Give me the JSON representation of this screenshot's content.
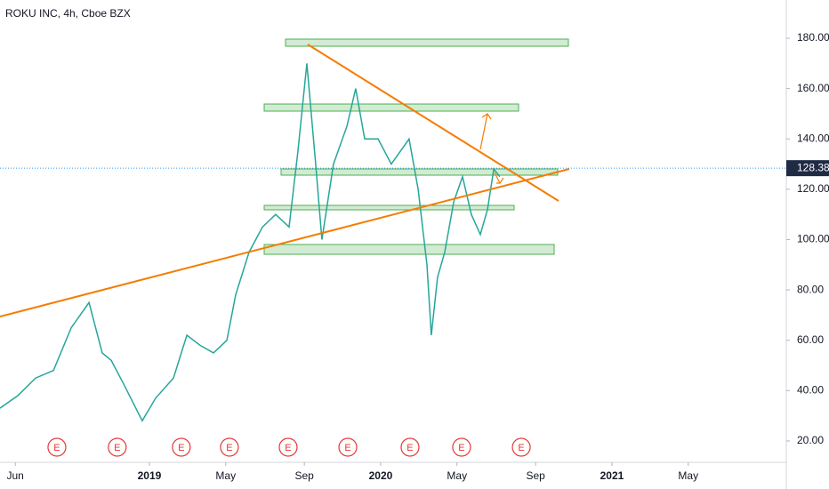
{
  "chart_data": {
    "type": "line",
    "title": "ROKU INC, 4h, Cboe BZX",
    "color": "#26a69a",
    "x": [
      2018.354,
      2018.431,
      2018.508,
      2018.585,
      2018.662,
      2018.739,
      2018.796,
      2018.835,
      2018.892,
      2018.969,
      2019.027,
      2019.104,
      2019.162,
      2019.219,
      2019.277,
      2019.335,
      2019.373,
      2019.431,
      2019.489,
      2019.546,
      2019.604,
      2019.642,
      2019.681,
      2019.719,
      2019.746,
      2019.796,
      2019.854,
      2019.892,
      2019.931,
      2019.989,
      2020.046,
      2020.123,
      2020.162,
      2020.2,
      2020.219,
      2020.246,
      2020.277,
      2020.316,
      2020.354,
      2020.392,
      2020.431,
      2020.462,
      2020.489,
      2020.515
    ],
    "values": [
      33,
      38,
      45,
      48,
      65,
      75,
      55,
      52,
      42,
      28,
      37,
      45,
      62,
      58,
      55,
      60,
      78,
      95,
      105,
      110,
      105,
      135,
      170,
      130,
      100,
      130,
      145,
      160,
      140,
      140,
      130,
      140,
      120,
      90,
      62,
      85,
      95,
      115,
      125,
      110,
      102,
      112,
      128,
      125
    ],
    "last_value": 128.38,
    "xlim": [
      2018.354,
      2021.754
    ],
    "ylim": [
      11.5,
      195.2
    ],
    "xticks": [
      {
        "value": 2018.42,
        "label": "Jun"
      },
      2019,
      {
        "value": 2019.33,
        "label": "May"
      },
      {
        "value": 2019.67,
        "label": "Sep"
      },
      2020,
      {
        "value": 2020.33,
        "label": "May"
      },
      {
        "value": 2020.67,
        "label": "Sep"
      },
      2021,
      {
        "value": 2021.33,
        "label": "May"
      }
    ],
    "yticks": [
      {
        "value": 20,
        "label": "20.00"
      },
      {
        "value": 40,
        "label": "40.00"
      },
      {
        "value": 60,
        "label": "60.00"
      },
      {
        "value": 80,
        "label": "80.00"
      },
      {
        "value": 100,
        "label": "100.00"
      },
      {
        "value": 120,
        "label": "120.00"
      },
      {
        "value": 140,
        "label": "140.00"
      },
      {
        "value": 160,
        "label": "160.00"
      },
      {
        "value": 180,
        "label": "180.00"
      }
    ],
    "earnings": [
      {
        "x": 2018.6,
        "label": "E"
      },
      {
        "x": 2018.861,
        "label": "E"
      },
      {
        "x": 2019.138,
        "label": "E"
      },
      {
        "x": 2019.346,
        "label": "E"
      },
      {
        "x": 2019.6,
        "label": "E"
      },
      {
        "x": 2019.858,
        "label": "E"
      },
      {
        "x": 2020.127,
        "label": "E"
      },
      {
        "x": 2020.35,
        "label": "E"
      },
      {
        "x": 2020.608,
        "label": "E"
      }
    ]
  }
}
